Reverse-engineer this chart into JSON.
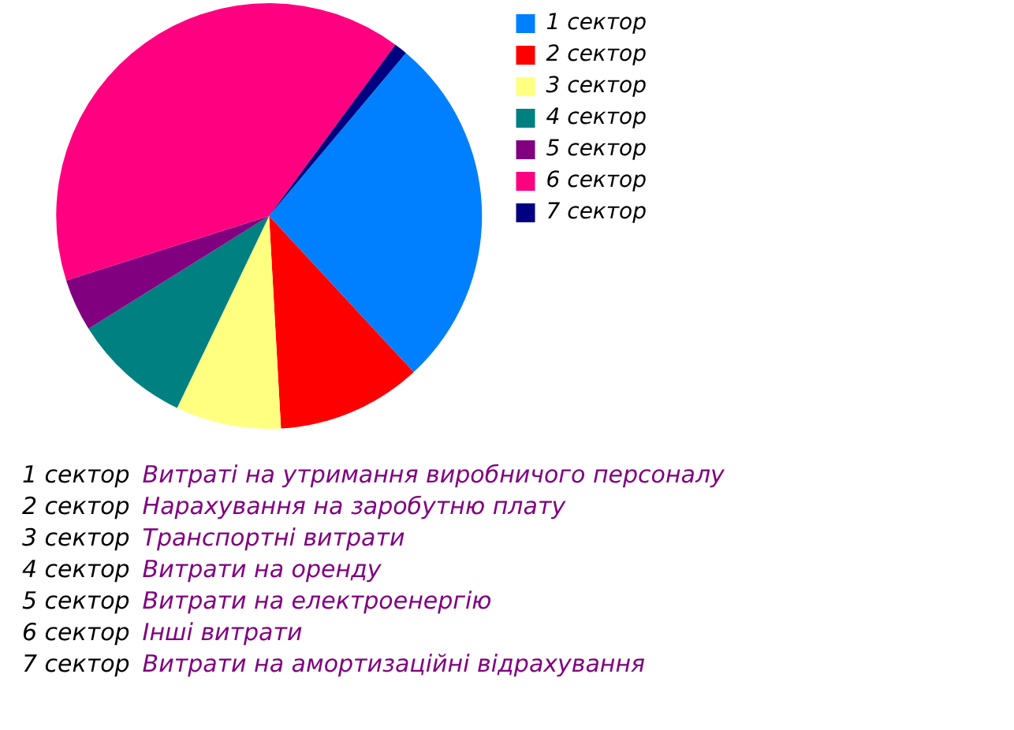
{
  "chart_data": {
    "type": "pie",
    "categories": [
      "1 сектор",
      "2 сектор",
      "3 сектор",
      "4 сектор",
      "5 сектор",
      "6 сектор",
      "7 сектор"
    ],
    "values": [
      27,
      11,
      8,
      9,
      4,
      40,
      1
    ],
    "colors": [
      "#0080ff",
      "#ff0000",
      "#ffff80",
      "#008080",
      "#800080",
      "#ff0080",
      "#000080"
    ],
    "legend": "right",
    "annotations": [
      "1 сектор",
      "Витраті на утримання виробничого персоналу",
      "2 сектор",
      "Нарахування на заробутню плату",
      "3 сектор",
      "Транспортні витрати",
      "4 сектор",
      "Витрати на оренду",
      "5 сектор",
      "Витрати на електроенергію",
      "6 сектор",
      "Інші витрати",
      "7 сектор",
      "Витрати на амортизаційні відрахування"
    ]
  }
}
